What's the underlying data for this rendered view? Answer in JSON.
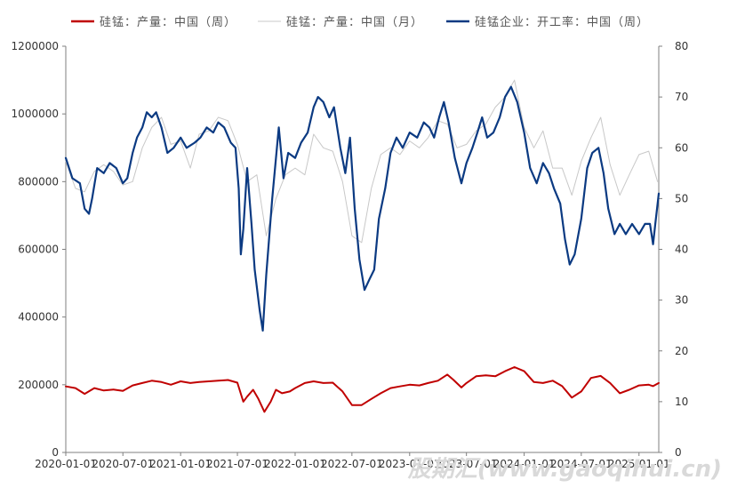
{
  "chart_data": {
    "type": "line",
    "legend_position": "top",
    "grid": false,
    "x_axis": {
      "ticks": [
        "2020-01-01",
        "2020-07-01",
        "2021-01-01",
        "2021-07-01",
        "2022-01-01",
        "2022-07-01",
        "2023-01-01",
        "2023-07-01",
        "2024-01-01",
        "2024-07-01",
        "2025-01-01"
      ],
      "range": [
        "2020-01-01",
        "2025-03-05"
      ]
    },
    "y_left": {
      "min": 0,
      "max": 1200000,
      "ticks": [
        0,
        200000,
        400000,
        600000,
        800000,
        1000000,
        1200000
      ]
    },
    "y_right": {
      "min": 0,
      "max": 80,
      "ticks": [
        0,
        10,
        20,
        30,
        40,
        50,
        60,
        70,
        80
      ]
    },
    "series": [
      {
        "name": "硅锰：产量：中国（周）",
        "color": "#c00000",
        "axis": "left",
        "points": [
          [
            "2020-01-01",
            195000
          ],
          [
            "2020-02-01",
            190000
          ],
          [
            "2020-03-01",
            173000
          ],
          [
            "2020-04-01",
            190000
          ],
          [
            "2020-05-01",
            183000
          ],
          [
            "2020-06-01",
            186000
          ],
          [
            "2020-07-01",
            182000
          ],
          [
            "2020-08-01",
            198000
          ],
          [
            "2020-09-01",
            205000
          ],
          [
            "2020-10-01",
            212000
          ],
          [
            "2020-11-01",
            208000
          ],
          [
            "2020-12-01",
            200000
          ],
          [
            "2021-01-01",
            210000
          ],
          [
            "2021-02-01",
            205000
          ],
          [
            "2021-03-01",
            208000
          ],
          [
            "2021-04-01",
            210000
          ],
          [
            "2021-05-01",
            212000
          ],
          [
            "2021-06-01",
            214000
          ],
          [
            "2021-07-01",
            206000
          ],
          [
            "2021-07-20",
            150000
          ],
          [
            "2021-08-01",
            165000
          ],
          [
            "2021-08-20",
            185000
          ],
          [
            "2021-09-05",
            160000
          ],
          [
            "2021-09-25",
            120000
          ],
          [
            "2021-10-15",
            150000
          ],
          [
            "2021-11-01",
            185000
          ],
          [
            "2021-11-20",
            175000
          ],
          [
            "2021-12-15",
            180000
          ],
          [
            "2022-01-01",
            190000
          ],
          [
            "2022-02-01",
            205000
          ],
          [
            "2022-03-01",
            210000
          ],
          [
            "2022-04-01",
            205000
          ],
          [
            "2022-05-01",
            206000
          ],
          [
            "2022-06-01",
            180000
          ],
          [
            "2022-07-01",
            140000
          ],
          [
            "2022-08-01",
            140000
          ],
          [
            "2022-09-01",
            158000
          ],
          [
            "2022-10-01",
            175000
          ],
          [
            "2022-11-01",
            190000
          ],
          [
            "2022-12-01",
            195000
          ],
          [
            "2023-01-01",
            200000
          ],
          [
            "2023-02-01",
            198000
          ],
          [
            "2023-03-01",
            205000
          ],
          [
            "2023-04-01",
            212000
          ],
          [
            "2023-05-01",
            230000
          ],
          [
            "2023-05-20",
            215000
          ],
          [
            "2023-06-15",
            192000
          ],
          [
            "2023-07-01",
            205000
          ],
          [
            "2023-08-01",
            225000
          ],
          [
            "2023-09-01",
            228000
          ],
          [
            "2023-10-01",
            225000
          ],
          [
            "2023-11-01",
            240000
          ],
          [
            "2023-12-01",
            252000
          ],
          [
            "2024-01-01",
            240000
          ],
          [
            "2024-02-01",
            208000
          ],
          [
            "2024-03-01",
            205000
          ],
          [
            "2024-04-01",
            212000
          ],
          [
            "2024-05-01",
            196000
          ],
          [
            "2024-06-01",
            162000
          ],
          [
            "2024-07-01",
            180000
          ],
          [
            "2024-08-01",
            220000
          ],
          [
            "2024-09-01",
            226000
          ],
          [
            "2024-10-01",
            205000
          ],
          [
            "2024-11-01",
            175000
          ],
          [
            "2024-12-01",
            185000
          ],
          [
            "2025-01-01",
            198000
          ],
          [
            "2025-02-01",
            200000
          ],
          [
            "2025-02-15",
            196000
          ],
          [
            "2025-03-05",
            205000
          ]
        ]
      },
      {
        "name": "硅锰：产量：中国（月）",
        "color": "#c8c8c8",
        "axis": "left",
        "points": [
          [
            "2020-01-01",
            860000
          ],
          [
            "2020-02-01",
            780000
          ],
          [
            "2020-03-01",
            770000
          ],
          [
            "2020-04-01",
            830000
          ],
          [
            "2020-05-01",
            850000
          ],
          [
            "2020-06-01",
            830000
          ],
          [
            "2020-07-01",
            790000
          ],
          [
            "2020-08-01",
            800000
          ],
          [
            "2020-09-01",
            900000
          ],
          [
            "2020-10-01",
            960000
          ],
          [
            "2020-11-01",
            990000
          ],
          [
            "2020-12-01",
            910000
          ],
          [
            "2021-01-01",
            920000
          ],
          [
            "2021-02-01",
            840000
          ],
          [
            "2021-03-01",
            940000
          ],
          [
            "2021-04-01",
            950000
          ],
          [
            "2021-05-01",
            990000
          ],
          [
            "2021-06-01",
            980000
          ],
          [
            "2021-07-01",
            910000
          ],
          [
            "2021-08-01",
            800000
          ],
          [
            "2021-09-01",
            820000
          ],
          [
            "2021-10-01",
            640000
          ],
          [
            "2021-11-01",
            750000
          ],
          [
            "2021-12-01",
            820000
          ],
          [
            "2022-01-01",
            840000
          ],
          [
            "2022-02-01",
            820000
          ],
          [
            "2022-03-01",
            940000
          ],
          [
            "2022-04-01",
            900000
          ],
          [
            "2022-05-01",
            890000
          ],
          [
            "2022-06-01",
            800000
          ],
          [
            "2022-07-01",
            640000
          ],
          [
            "2022-08-01",
            620000
          ],
          [
            "2022-09-01",
            780000
          ],
          [
            "2022-10-01",
            880000
          ],
          [
            "2022-11-01",
            900000
          ],
          [
            "2022-12-01",
            880000
          ],
          [
            "2023-01-01",
            920000
          ],
          [
            "2023-02-01",
            900000
          ],
          [
            "2023-03-01",
            930000
          ],
          [
            "2023-04-01",
            980000
          ],
          [
            "2023-05-01",
            970000
          ],
          [
            "2023-06-01",
            900000
          ],
          [
            "2023-07-01",
            910000
          ],
          [
            "2023-08-01",
            950000
          ],
          [
            "2023-09-01",
            970000
          ],
          [
            "2023-10-01",
            1020000
          ],
          [
            "2023-11-01",
            1050000
          ],
          [
            "2023-12-01",
            1100000
          ],
          [
            "2024-01-01",
            960000
          ],
          [
            "2024-02-01",
            900000
          ],
          [
            "2024-03-01",
            950000
          ],
          [
            "2024-04-01",
            840000
          ],
          [
            "2024-05-01",
            840000
          ],
          [
            "2024-06-01",
            760000
          ],
          [
            "2024-07-01",
            860000
          ],
          [
            "2024-08-01",
            930000
          ],
          [
            "2024-09-01",
            990000
          ],
          [
            "2024-10-01",
            850000
          ],
          [
            "2024-11-01",
            760000
          ],
          [
            "2024-12-01",
            820000
          ],
          [
            "2025-01-01",
            880000
          ],
          [
            "2025-02-01",
            890000
          ],
          [
            "2025-03-01",
            800000
          ]
        ]
      },
      {
        "name": "硅锰企业：开工率：中国（周）",
        "color": "#0b3a82",
        "axis": "right",
        "points": [
          [
            "2020-01-01",
            58
          ],
          [
            "2020-01-22",
            54
          ],
          [
            "2020-02-15",
            53
          ],
          [
            "2020-03-01",
            48
          ],
          [
            "2020-03-15",
            47
          ],
          [
            "2020-03-25",
            50
          ],
          [
            "2020-04-10",
            56
          ],
          [
            "2020-05-01",
            55
          ],
          [
            "2020-05-20",
            57
          ],
          [
            "2020-06-10",
            56
          ],
          [
            "2020-07-01",
            53
          ],
          [
            "2020-07-15",
            54
          ],
          [
            "2020-08-01",
            59
          ],
          [
            "2020-08-15",
            62
          ],
          [
            "2020-09-01",
            64
          ],
          [
            "2020-09-15",
            67
          ],
          [
            "2020-10-01",
            66
          ],
          [
            "2020-10-15",
            67
          ],
          [
            "2020-11-01",
            64
          ],
          [
            "2020-11-20",
            59
          ],
          [
            "2020-12-10",
            60
          ],
          [
            "2021-01-01",
            62
          ],
          [
            "2021-01-20",
            60
          ],
          [
            "2021-02-15",
            61
          ],
          [
            "2021-03-05",
            62
          ],
          [
            "2021-03-25",
            64
          ],
          [
            "2021-04-15",
            63
          ],
          [
            "2021-05-01",
            65
          ],
          [
            "2021-05-20",
            64
          ],
          [
            "2021-06-10",
            61
          ],
          [
            "2021-06-25",
            60
          ],
          [
            "2021-07-05",
            52
          ],
          [
            "2021-07-12",
            39
          ],
          [
            "2021-07-20",
            44
          ],
          [
            "2021-08-01",
            56
          ],
          [
            "2021-08-15",
            45
          ],
          [
            "2021-08-25",
            36
          ],
          [
            "2021-09-10",
            28
          ],
          [
            "2021-09-20",
            24
          ],
          [
            "2021-10-01",
            35
          ],
          [
            "2021-10-20",
            50
          ],
          [
            "2021-11-10",
            64
          ],
          [
            "2021-11-25",
            54
          ],
          [
            "2021-12-10",
            59
          ],
          [
            "2022-01-01",
            58
          ],
          [
            "2022-01-20",
            61
          ],
          [
            "2022-02-10",
            63
          ],
          [
            "2022-03-01",
            68
          ],
          [
            "2022-03-15",
            70
          ],
          [
            "2022-04-01",
            69
          ],
          [
            "2022-04-20",
            66
          ],
          [
            "2022-05-05",
            68
          ],
          [
            "2022-05-25",
            60
          ],
          [
            "2022-06-10",
            55
          ],
          [
            "2022-06-25",
            62
          ],
          [
            "2022-07-10",
            48
          ],
          [
            "2022-07-25",
            38
          ],
          [
            "2022-08-10",
            32
          ],
          [
            "2022-08-25",
            34
          ],
          [
            "2022-09-10",
            36
          ],
          [
            "2022-09-25",
            46
          ],
          [
            "2022-10-15",
            52
          ],
          [
            "2022-11-01",
            59
          ],
          [
            "2022-11-20",
            62
          ],
          [
            "2022-12-10",
            60
          ],
          [
            "2023-01-01",
            63
          ],
          [
            "2023-01-25",
            62
          ],
          [
            "2023-02-15",
            65
          ],
          [
            "2023-03-05",
            64
          ],
          [
            "2023-03-20",
            62
          ],
          [
            "2023-04-05",
            66
          ],
          [
            "2023-04-20",
            69
          ],
          [
            "2023-05-05",
            65
          ],
          [
            "2023-05-25",
            58
          ],
          [
            "2023-06-15",
            53
          ],
          [
            "2023-07-01",
            57
          ],
          [
            "2023-07-20",
            60
          ],
          [
            "2023-08-05",
            63
          ],
          [
            "2023-08-20",
            66
          ],
          [
            "2023-09-05",
            62
          ],
          [
            "2023-09-25",
            63
          ],
          [
            "2023-10-15",
            66
          ],
          [
            "2023-11-01",
            70
          ],
          [
            "2023-11-20",
            72
          ],
          [
            "2023-12-10",
            69
          ],
          [
            "2024-01-01",
            63
          ],
          [
            "2024-01-20",
            56
          ],
          [
            "2024-02-10",
            53
          ],
          [
            "2024-03-01",
            57
          ],
          [
            "2024-03-20",
            55
          ],
          [
            "2024-04-05",
            52
          ],
          [
            "2024-04-25",
            49
          ],
          [
            "2024-05-10",
            42
          ],
          [
            "2024-05-25",
            37
          ],
          [
            "2024-06-10",
            39
          ],
          [
            "2024-07-01",
            46
          ],
          [
            "2024-07-20",
            56
          ],
          [
            "2024-08-05",
            59
          ],
          [
            "2024-08-25",
            60
          ],
          [
            "2024-09-10",
            55
          ],
          [
            "2024-09-25",
            48
          ],
          [
            "2024-10-15",
            43
          ],
          [
            "2024-11-01",
            45
          ],
          [
            "2024-11-20",
            43
          ],
          [
            "2024-12-10",
            45
          ],
          [
            "2025-01-01",
            43
          ],
          [
            "2025-01-20",
            45
          ],
          [
            "2025-02-05",
            45
          ],
          [
            "2025-02-15",
            41
          ],
          [
            "2025-02-22",
            45
          ],
          [
            "2025-03-05",
            51
          ]
        ]
      }
    ]
  },
  "watermark": "股期汇(www.gaoqihui.cn)"
}
